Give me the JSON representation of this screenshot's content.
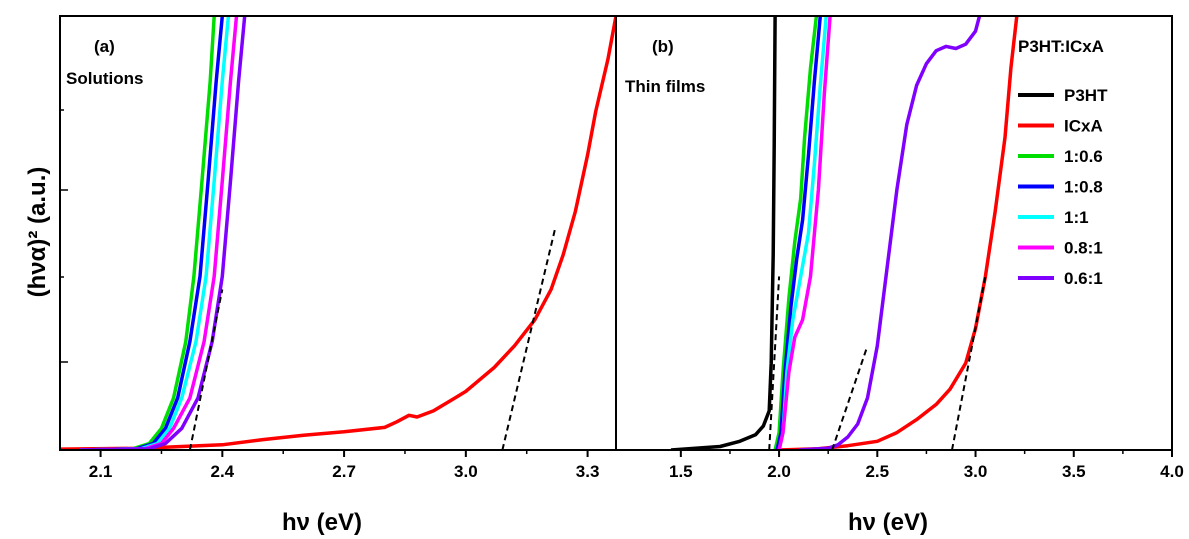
{
  "chart_data": [
    {
      "type": "line",
      "panel_label": "(a)",
      "panel_caption": "Solutions",
      "xlabel": "hν (eV)",
      "ylabel": "(hνα)² (a.u.)",
      "xlim": [
        2.0,
        3.37
      ],
      "ylim": [
        0,
        100
      ],
      "x_ticks": [
        "2.1",
        "2.4",
        "2.7",
        "3.0",
        "3.3"
      ],
      "x_tick_values": [
        2.1,
        2.4,
        2.7,
        3.0,
        3.3
      ],
      "y_ticks_labeled": false,
      "series": [
        {
          "name": "ICxA",
          "color": "#ff0000",
          "points": [
            [
              2.0,
              0.2
            ],
            [
              2.2,
              0.4
            ],
            [
              2.4,
              1.2
            ],
            [
              2.5,
              2.4
            ],
            [
              2.6,
              3.4
            ],
            [
              2.7,
              4.2
            ],
            [
              2.8,
              5.2
            ],
            [
              2.83,
              6.5
            ],
            [
              2.86,
              8.0
            ],
            [
              2.88,
              7.6
            ],
            [
              2.92,
              9.0
            ],
            [
              2.97,
              11.8
            ],
            [
              3.0,
              13.5
            ],
            [
              3.07,
              19.0
            ],
            [
              3.12,
              24.0
            ],
            [
              3.17,
              30.0
            ],
            [
              3.21,
              37.0
            ],
            [
              3.24,
              45.0
            ],
            [
              3.27,
              55.0
            ],
            [
              3.3,
              68.0
            ],
            [
              3.32,
              78.0
            ],
            [
              3.35,
              90.0
            ],
            [
              3.37,
              100
            ]
          ]
        },
        {
          "name": "1:0.6",
          "color": "#00dd00",
          "points": [
            [
              2.05,
              0.0
            ],
            [
              2.18,
              0.3
            ],
            [
              2.22,
              1.5
            ],
            [
              2.25,
              5.0
            ],
            [
              2.28,
              12.0
            ],
            [
              2.31,
              25.0
            ],
            [
              2.33,
              40.0
            ],
            [
              2.35,
              62.0
            ],
            [
              2.37,
              85.0
            ],
            [
              2.38,
              100
            ]
          ]
        },
        {
          "name": "1:0.8",
          "color": "#0000ff",
          "points": [
            [
              2.05,
              0.0
            ],
            [
              2.19,
              0.3
            ],
            [
              2.23,
              1.5
            ],
            [
              2.26,
              5.0
            ],
            [
              2.29,
              12.0
            ],
            [
              2.32,
              25.0
            ],
            [
              2.345,
              40.0
            ],
            [
              2.365,
              62.0
            ],
            [
              2.385,
              85.0
            ],
            [
              2.4,
              100
            ]
          ]
        },
        {
          "name": "1:1",
          "color": "#00ffff",
          "points": [
            [
              2.05,
              0.0
            ],
            [
              2.2,
              0.3
            ],
            [
              2.24,
              1.5
            ],
            [
              2.27,
              5.0
            ],
            [
              2.3,
              12.0
            ],
            [
              2.335,
              25.0
            ],
            [
              2.36,
              40.0
            ],
            [
              2.38,
              62.0
            ],
            [
              2.4,
              85.0
            ],
            [
              2.415,
              100
            ]
          ]
        },
        {
          "name": "0.8:1",
          "color": "#ff00ff",
          "points": [
            [
              2.05,
              0.0
            ],
            [
              2.21,
              0.3
            ],
            [
              2.25,
              1.5
            ],
            [
              2.28,
              5.0
            ],
            [
              2.32,
              12.0
            ],
            [
              2.355,
              25.0
            ],
            [
              2.38,
              40.0
            ],
            [
              2.4,
              62.0
            ],
            [
              2.42,
              85.0
            ],
            [
              2.435,
              100
            ]
          ]
        },
        {
          "name": "0.6:1",
          "color": "#8000ff",
          "points": [
            [
              2.05,
              0.0
            ],
            [
              2.22,
              0.3
            ],
            [
              2.26,
              1.5
            ],
            [
              2.3,
              5.0
            ],
            [
              2.34,
              12.0
            ],
            [
              2.375,
              25.0
            ],
            [
              2.4,
              40.0
            ],
            [
              2.42,
              62.0
            ],
            [
              2.44,
              85.0
            ],
            [
              2.455,
              100
            ]
          ]
        }
      ],
      "tangent_lines": [
        {
          "points": [
            [
              2.32,
              0.0
            ],
            [
              2.4,
              37.0
            ]
          ]
        },
        {
          "points": [
            [
              3.09,
              0.0
            ],
            [
              3.22,
              51.0
            ]
          ]
        }
      ]
    },
    {
      "type": "line",
      "panel_label": "(b)",
      "panel_caption": "Thin films",
      "xlabel": "hν (eV)",
      "xlim": [
        1.17,
        4.0
      ],
      "ylim": [
        0,
        100
      ],
      "x_ticks": [
        "1.5",
        "2.0",
        "2.5",
        "3.0",
        "3.5",
        "4.0"
      ],
      "x_tick_values": [
        1.5,
        2.0,
        2.5,
        3.0,
        3.5,
        4.0
      ],
      "y_ticks_labeled": false,
      "legend": {
        "title": "P3HT:ICxA",
        "placement": "right"
      },
      "series": [
        {
          "name": "P3HT",
          "color": "#000000",
          "points": [
            [
              1.45,
              0.0
            ],
            [
              1.7,
              0.8
            ],
            [
              1.8,
              2.0
            ],
            [
              1.88,
              3.5
            ],
            [
              1.92,
              5.5
            ],
            [
              1.95,
              9.0
            ],
            [
              1.96,
              20.0
            ],
            [
              1.97,
              45.0
            ],
            [
              1.975,
              70.0
            ],
            [
              1.98,
              100
            ]
          ]
        },
        {
          "name": "ICxA",
          "color": "#ff0000",
          "points": [
            [
              2.0,
              0.0
            ],
            [
              2.2,
              0.3
            ],
            [
              2.35,
              1.0
            ],
            [
              2.5,
              2.0
            ],
            [
              2.6,
              4.0
            ],
            [
              2.7,
              7.0
            ],
            [
              2.8,
              10.5
            ],
            [
              2.87,
              14.0
            ],
            [
              2.95,
              20.0
            ],
            [
              3.0,
              28.0
            ],
            [
              3.05,
              40.0
            ],
            [
              3.1,
              55.0
            ],
            [
              3.15,
              72.0
            ],
            [
              3.18,
              88.0
            ],
            [
              3.21,
              100
            ]
          ]
        },
        {
          "name": "1:0.6",
          "color": "#00dd00",
          "points": [
            [
              1.98,
              0.0
            ],
            [
              2.0,
              4.0
            ],
            [
              2.02,
              18.0
            ],
            [
              2.05,
              35.0
            ],
            [
              2.08,
              48.0
            ],
            [
              2.11,
              58.0
            ],
            [
              2.13,
              72.0
            ],
            [
              2.16,
              88.0
            ],
            [
              2.19,
              100
            ]
          ]
        },
        {
          "name": "1:0.8",
          "color": "#0000ff",
          "points": [
            [
              1.99,
              0.0
            ],
            [
              2.01,
              4.0
            ],
            [
              2.03,
              18.0
            ],
            [
              2.06,
              33.0
            ],
            [
              2.09,
              44.0
            ],
            [
              2.12,
              53.0
            ],
            [
              2.15,
              68.0
            ],
            [
              2.18,
              85.0
            ],
            [
              2.21,
              100
            ]
          ]
        },
        {
          "name": "1:1",
          "color": "#00ffff",
          "points": [
            [
              2.0,
              0.0
            ],
            [
              2.02,
              4.0
            ],
            [
              2.04,
              18.0
            ],
            [
              2.07,
              30.0
            ],
            [
              2.11,
              40.0
            ],
            [
              2.15,
              50.0
            ],
            [
              2.18,
              66.0
            ],
            [
              2.21,
              84.0
            ],
            [
              2.24,
              100
            ]
          ]
        },
        {
          "name": "0.8:1",
          "color": "#ff00ff",
          "points": [
            [
              2.0,
              0.0
            ],
            [
              2.02,
              4.0
            ],
            [
              2.05,
              18.0
            ],
            [
              2.08,
              26.0
            ],
            [
              2.12,
              30.0
            ],
            [
              2.16,
              40.0
            ],
            [
              2.2,
              60.0
            ],
            [
              2.23,
              82.0
            ],
            [
              2.26,
              100
            ]
          ]
        },
        {
          "name": "0.6:1",
          "color": "#8000ff",
          "points": [
            [
              2.1,
              0.0
            ],
            [
              2.25,
              0.4
            ],
            [
              2.3,
              1.2
            ],
            [
              2.35,
              3.0
            ],
            [
              2.4,
              6.0
            ],
            [
              2.45,
              12.0
            ],
            [
              2.5,
              24.0
            ],
            [
              2.55,
              42.0
            ],
            [
              2.6,
              60.0
            ],
            [
              2.65,
              75.0
            ],
            [
              2.7,
              84.0
            ],
            [
              2.75,
              89.0
            ],
            [
              2.8,
              92.0
            ],
            [
              2.85,
              93.0
            ],
            [
              2.9,
              92.5
            ],
            [
              2.95,
              93.5
            ],
            [
              3.0,
              96.5
            ],
            [
              3.02,
              100
            ]
          ]
        }
      ],
      "tangent_lines": [
        {
          "points": [
            [
              1.95,
              0.0
            ],
            [
              2.0,
              40.0
            ]
          ]
        },
        {
          "points": [
            [
              2.27,
              0.0
            ],
            [
              2.45,
              24.0
            ]
          ]
        },
        {
          "points": [
            [
              2.88,
              0.0
            ],
            [
              3.05,
              40.0
            ]
          ]
        }
      ]
    }
  ]
}
